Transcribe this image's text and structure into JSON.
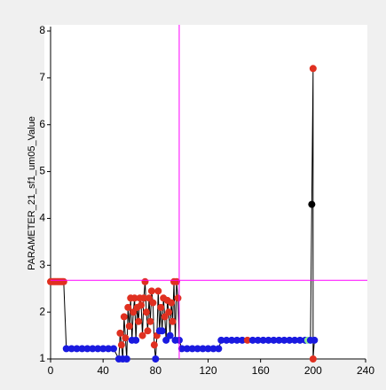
{
  "chart_data": {
    "type": "line",
    "y_label": "PARAMETER_21_sf1_um05_Value",
    "xlim": [
      0,
      240
    ],
    "xticks": [
      0,
      40,
      80,
      120,
      160,
      200,
      240
    ],
    "ylim": [
      1,
      8
    ],
    "yticks": [
      1,
      2,
      3,
      4,
      5,
      6,
      7,
      8
    ],
    "crosshair": {
      "x": 98,
      "y": 2.68,
      "color": "#ff00ff"
    },
    "series": [
      {
        "color": "#000000",
        "x": [
          0,
          1,
          2,
          3,
          4,
          5,
          6,
          7,
          8,
          9,
          10,
          12,
          16,
          20,
          24,
          28,
          32,
          36,
          40,
          44,
          48,
          52,
          53,
          54,
          55,
          56,
          57,
          58,
          59,
          60,
          61,
          62,
          63,
          64,
          65,
          66,
          67,
          68,
          69,
          70,
          71,
          72,
          73,
          74,
          75,
          76,
          77,
          78,
          79,
          80,
          81,
          82,
          83,
          84,
          85,
          86,
          87,
          88,
          89,
          90,
          91,
          92,
          93,
          94,
          95,
          96,
          97,
          98,
          100,
          104,
          108,
          112,
          116,
          120,
          124,
          128,
          130,
          134,
          138,
          142,
          146,
          150,
          154,
          158,
          162,
          166,
          170,
          174,
          178,
          182,
          186,
          190,
          194,
          196,
          198,
          199,
          200,
          200,
          201
        ],
        "values": [
          2.65,
          2.65,
          2.65,
          2.65,
          2.65,
          2.65,
          2.65,
          2.65,
          2.65,
          2.65,
          2.65,
          1.22,
          1.22,
          1.22,
          1.22,
          1.22,
          1.22,
          1.22,
          1.22,
          1.22,
          1.22,
          1.0,
          1.55,
          1.3,
          1.0,
          1.9,
          1.45,
          1.0,
          2.1,
          1.7,
          2.3,
          1.4,
          2.0,
          2.3,
          1.4,
          2.1,
          1.8,
          2.3,
          2.15,
          1.5,
          2.3,
          2.65,
          2.0,
          1.6,
          2.3,
          1.8,
          2.45,
          2.2,
          1.3,
          1.0,
          1.5,
          2.45,
          1.6,
          2.1,
          1.6,
          2.3,
          1.9,
          1.4,
          2.25,
          2.0,
          1.5,
          2.2,
          1.8,
          2.65,
          1.4,
          2.65,
          2.3,
          1.4,
          1.22,
          1.22,
          1.22,
          1.22,
          1.22,
          1.22,
          1.22,
          1.22,
          1.4,
          1.4,
          1.4,
          1.4,
          1.4,
          1.4,
          1.4,
          1.4,
          1.4,
          1.4,
          1.4,
          1.4,
          1.4,
          1.4,
          1.4,
          1.4,
          1.4,
          1.4,
          1.4,
          4.3,
          7.2,
          1.0,
          1.4
        ],
        "marker_colors": [
          "#e03020",
          "#e03020",
          "#e03020",
          "#e03020",
          "#e03020",
          "#e03020",
          "#e03020",
          "#e03020",
          "#e03020",
          "#e03020",
          "#e03020",
          "#1a1ae0",
          "#1a1ae0",
          "#1a1ae0",
          "#1a1ae0",
          "#1a1ae0",
          "#1a1ae0",
          "#1a1ae0",
          "#1a1ae0",
          "#1a1ae0",
          "#1a1ae0",
          "#1a1ae0",
          "#e03020",
          "#e03020",
          "#1a1ae0",
          "#e03020",
          "#e03020",
          "#1a1ae0",
          "#e03020",
          "#e03020",
          "#e03020",
          "#1a1ae0",
          "#e03020",
          "#e03020",
          "#1a1ae0",
          "#e03020",
          "#e03020",
          "#e03020",
          "#e03020",
          "#e03020",
          "#e03020",
          "#e03020",
          "#e03020",
          "#e03020",
          "#e03020",
          "#e03020",
          "#e03020",
          "#e03020",
          "#e03020",
          "#1a1ae0",
          "#e03020",
          "#e03020",
          "#1a1ae0",
          "#e03020",
          "#1a1ae0",
          "#e03020",
          "#e03020",
          "#1a1ae0",
          "#e03020",
          "#e03020",
          "#1a1ae0",
          "#e03020",
          "#e03020",
          "#e03020",
          "#1a1ae0",
          "#e03020",
          "#e03020",
          "#1a1ae0",
          "#1a1ae0",
          "#1a1ae0",
          "#1a1ae0",
          "#1a1ae0",
          "#1a1ae0",
          "#1a1ae0",
          "#1a1ae0",
          "#1a1ae0",
          "#1a1ae0",
          "#1a1ae0",
          "#1a1ae0",
          "#1a1ae0",
          "#1a1ae0",
          "#e03020",
          "#1a1ae0",
          "#1a1ae0",
          "#1a1ae0",
          "#1a1ae0",
          "#1a1ae0",
          "#1a1ae0",
          "#1a1ae0",
          "#1a1ae0",
          "#1a1ae0",
          "#1a1ae0",
          "#1a1ae0",
          "#90ee90",
          "#1a1ae0",
          "#000000",
          "#e03020",
          "#e03020",
          "#1a1ae0"
        ]
      }
    ]
  }
}
